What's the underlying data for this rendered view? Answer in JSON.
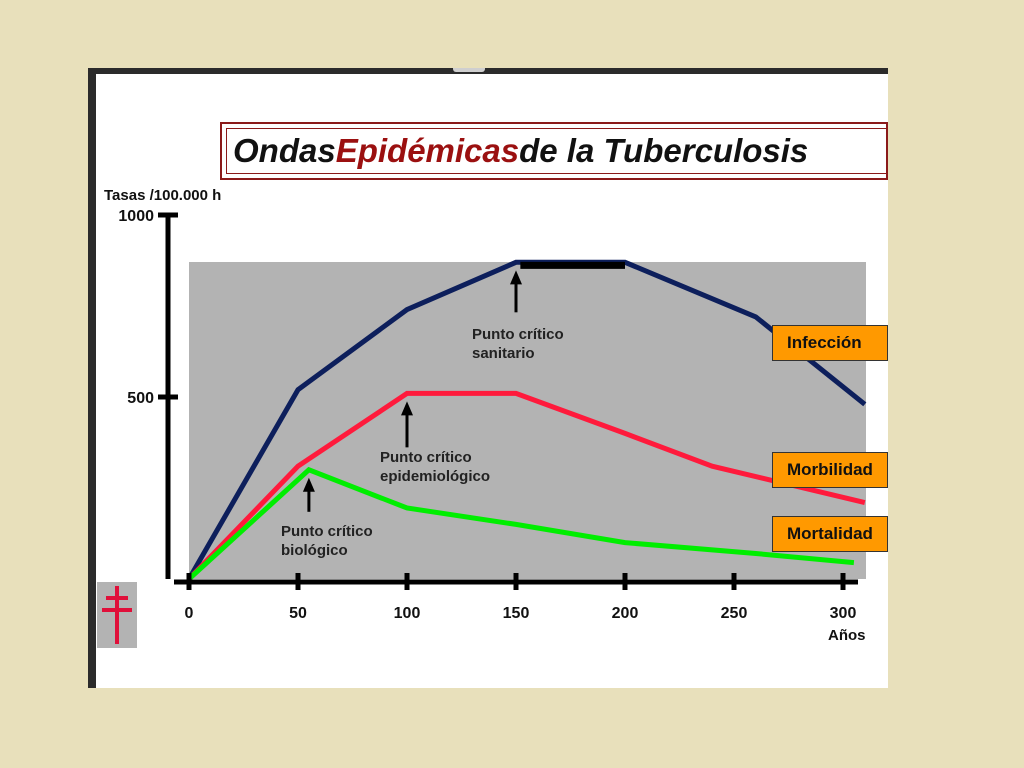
{
  "title": {
    "part1": "Ondas ",
    "part2": "Epidémicas",
    "part3": " de la Tuberculosis"
  },
  "chart_data": {
    "type": "line",
    "title": "Ondas Epidémicas de la Tuberculosis",
    "ylabel": "Tasas /100.000 h",
    "xlabel": "Años",
    "xlim": [
      0,
      300
    ],
    "ylim": [
      0,
      1000
    ],
    "x_ticks": [
      0,
      50,
      100,
      150,
      200,
      250,
      300
    ],
    "y_ticks": [
      500,
      1000
    ],
    "series": [
      {
        "name": "Infección",
        "color": "#0d1f5c",
        "points": [
          [
            0,
            0
          ],
          [
            50,
            520
          ],
          [
            100,
            740
          ],
          [
            150,
            870
          ],
          [
            200,
            870
          ],
          [
            260,
            720
          ],
          [
            310,
            480
          ]
        ]
      },
      {
        "name": "Morbilidad",
        "color": "#ff1a3c",
        "points": [
          [
            0,
            0
          ],
          [
            50,
            310
          ],
          [
            100,
            510
          ],
          [
            150,
            510
          ],
          [
            200,
            400
          ],
          [
            240,
            310
          ],
          [
            310,
            210
          ]
        ]
      },
      {
        "name": "Mortalidad",
        "color": "#00ee00",
        "points": [
          [
            0,
            0
          ],
          [
            55,
            300
          ],
          [
            100,
            195
          ],
          [
            150,
            150
          ],
          [
            200,
            100
          ],
          [
            260,
            70
          ],
          [
            305,
            45
          ]
        ]
      }
    ],
    "annotations": [
      {
        "id": "sanitario",
        "line1": "Punto crítico",
        "line2": "sanitario",
        "x": 150,
        "y": 870
      },
      {
        "id": "epidemiologico",
        "line1": "Punto crítico",
        "line2": "epidemiológico",
        "x": 100,
        "y": 510
      },
      {
        "id": "biologico",
        "line1": "Punto crítico",
        "line2": "biológico",
        "x": 55,
        "y": 300
      }
    ]
  },
  "colors": {
    "background": "#e8e0bb",
    "plot_area": "#b3b3b3",
    "legend_fill": "#ff9900",
    "title_red": "#9b1010",
    "cross": "#e0103a"
  },
  "icons": {
    "cross": "lorraine-cross-icon"
  }
}
